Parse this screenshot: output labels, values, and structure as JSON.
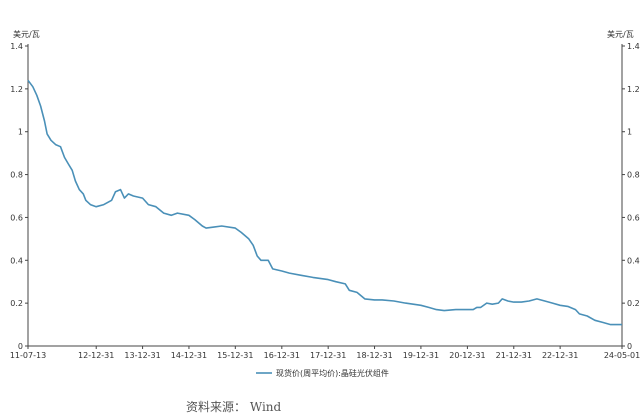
{
  "chart_data": {
    "type": "line",
    "title": "",
    "y_unit_left": "美元/瓦",
    "y_unit_right": "美元/瓦",
    "ylim": [
      0,
      1.4
    ],
    "y_ticks": [
      "0",
      "0.2",
      "0.4",
      "0.6",
      "0.8",
      "1",
      "1.2",
      "1.4"
    ],
    "x_tick_labels": [
      "11-07-13",
      "12-12-31",
      "13-12-31",
      "14-12-31",
      "15-12-31",
      "16-12-31",
      "17-12-31",
      "18-12-31",
      "19-12-31",
      "20-12-31",
      "21-12-31",
      "22-12-31",
      "24-05-01"
    ],
    "x_tick_dates": [
      "2011-07-13",
      "2012-12-31",
      "2013-12-31",
      "2014-12-31",
      "2015-12-31",
      "2016-12-31",
      "2017-12-31",
      "2018-12-31",
      "2019-12-31",
      "2020-12-31",
      "2021-12-31",
      "2022-12-31",
      "2024-05-01"
    ],
    "grid": false,
    "legend_position": "bottom",
    "colors": {
      "line": "#4a90b8"
    },
    "series": [
      {
        "name": "现货价(周平均价):晶硅光伏组件",
        "points": [
          [
            "2011-07-13",
            1.24
          ],
          [
            "2011-08-20",
            1.21
          ],
          [
            "2011-09-20",
            1.17
          ],
          [
            "2011-10-20",
            1.12
          ],
          [
            "2011-11-20",
            1.05
          ],
          [
            "2011-12-10",
            0.99
          ],
          [
            "2012-01-10",
            0.96
          ],
          [
            "2012-02-15",
            0.94
          ],
          [
            "2012-03-25",
            0.93
          ],
          [
            "2012-04-25",
            0.88
          ],
          [
            "2012-05-25",
            0.85
          ],
          [
            "2012-06-25",
            0.82
          ],
          [
            "2012-07-20",
            0.77
          ],
          [
            "2012-08-20",
            0.73
          ],
          [
            "2012-09-20",
            0.71
          ],
          [
            "2012-10-10",
            0.68
          ],
          [
            "2012-11-15",
            0.66
          ],
          [
            "2012-12-31",
            0.65
          ],
          [
            "2013-03-01",
            0.66
          ],
          [
            "2013-05-01",
            0.68
          ],
          [
            "2013-06-01",
            0.72
          ],
          [
            "2013-07-10",
            0.73
          ],
          [
            "2013-08-10",
            0.69
          ],
          [
            "2013-09-10",
            0.71
          ],
          [
            "2013-10-20",
            0.7
          ],
          [
            "2013-12-31",
            0.69
          ],
          [
            "2014-02-15",
            0.66
          ],
          [
            "2014-04-15",
            0.65
          ],
          [
            "2014-06-15",
            0.62
          ],
          [
            "2014-08-15",
            0.61
          ],
          [
            "2014-10-01",
            0.62
          ],
          [
            "2014-12-31",
            0.61
          ],
          [
            "2015-02-15",
            0.59
          ],
          [
            "2015-04-15",
            0.56
          ],
          [
            "2015-05-15",
            0.55
          ],
          [
            "2015-07-15",
            0.555
          ],
          [
            "2015-09-15",
            0.56
          ],
          [
            "2015-12-31",
            0.55
          ],
          [
            "2016-02-15",
            0.53
          ],
          [
            "2016-04-15",
            0.5
          ],
          [
            "2016-05-20",
            0.47
          ],
          [
            "2016-06-20",
            0.42
          ],
          [
            "2016-07-20",
            0.4
          ],
          [
            "2016-09-15",
            0.4
          ],
          [
            "2016-10-20",
            0.36
          ],
          [
            "2016-12-31",
            0.35
          ],
          [
            "2017-03-01",
            0.34
          ],
          [
            "2017-06-01",
            0.33
          ],
          [
            "2017-09-01",
            0.32
          ],
          [
            "2017-12-31",
            0.31
          ],
          [
            "2018-03-01",
            0.3
          ],
          [
            "2018-05-15",
            0.29
          ],
          [
            "2018-06-15",
            0.26
          ],
          [
            "2018-08-15",
            0.25
          ],
          [
            "2018-10-15",
            0.22
          ],
          [
            "2018-12-31",
            0.215
          ],
          [
            "2019-03-01",
            0.215
          ],
          [
            "2019-06-01",
            0.21
          ],
          [
            "2019-09-01",
            0.2
          ],
          [
            "2019-12-31",
            0.19
          ],
          [
            "2020-03-01",
            0.18
          ],
          [
            "2020-05-01",
            0.17
          ],
          [
            "2020-07-01",
            0.165
          ],
          [
            "2020-10-01",
            0.17
          ],
          [
            "2020-12-31",
            0.17
          ],
          [
            "2021-02-15",
            0.17
          ],
          [
            "2021-03-15",
            0.18
          ],
          [
            "2021-04-15",
            0.18
          ],
          [
            "2021-06-01",
            0.2
          ],
          [
            "2021-07-15",
            0.195
          ],
          [
            "2021-09-01",
            0.2
          ],
          [
            "2021-10-01",
            0.22
          ],
          [
            "2021-11-15",
            0.21
          ],
          [
            "2021-12-31",
            0.205
          ],
          [
            "2022-03-01",
            0.205
          ],
          [
            "2022-05-01",
            0.21
          ],
          [
            "2022-07-01",
            0.22
          ],
          [
            "2022-09-01",
            0.21
          ],
          [
            "2022-11-01",
            0.2
          ],
          [
            "2022-12-31",
            0.19
          ],
          [
            "2023-03-01",
            0.185
          ],
          [
            "2023-05-01",
            0.17
          ],
          [
            "2023-06-01",
            0.15
          ],
          [
            "2023-08-01",
            0.14
          ],
          [
            "2023-10-01",
            0.12
          ],
          [
            "2023-12-01",
            0.11
          ],
          [
            "2024-02-01",
            0.1
          ],
          [
            "2024-05-01",
            0.1
          ]
        ]
      }
    ]
  },
  "source_text": "资料来源： Wind"
}
